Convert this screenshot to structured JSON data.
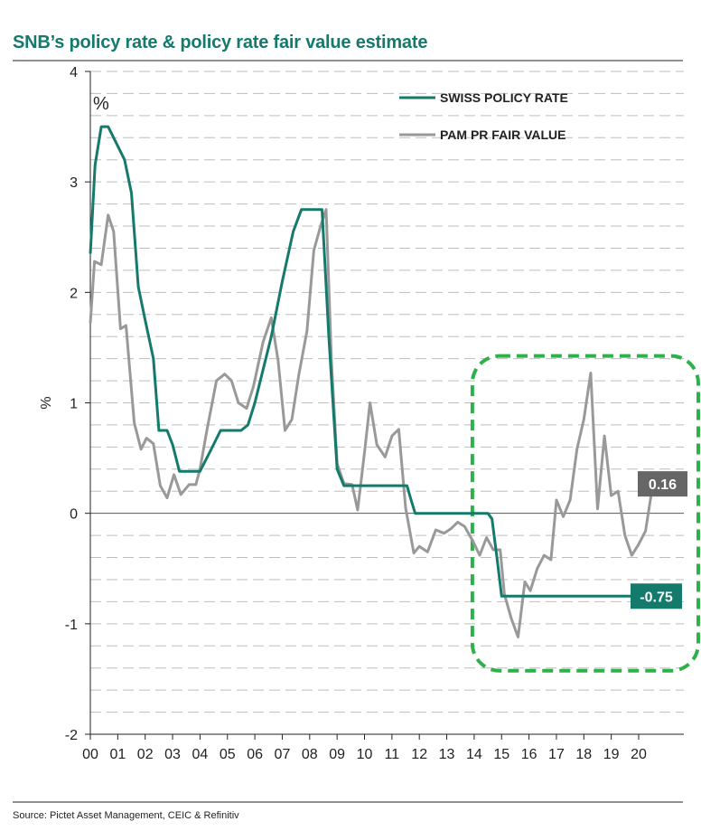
{
  "page": {
    "source": "Source: Pictet Asset Management, CEIC & Refinitiv"
  },
  "chart_data": {
    "type": "line",
    "title": "SNB’s policy rate & policy rate fair value estimate",
    "ylabel": "%",
    "unit_label": "%",
    "xlabel": "",
    "ylim": [
      -2,
      4
    ],
    "yticks": [
      4,
      3,
      2,
      1,
      0,
      -1,
      -2
    ],
    "xlim": [
      2000,
      2021
    ],
    "xticks": [
      {
        "label": "00",
        "value": 2000
      },
      {
        "label": "01",
        "value": 2001
      },
      {
        "label": "02",
        "value": 2002
      },
      {
        "label": "03",
        "value": 2003
      },
      {
        "label": "04",
        "value": 2004
      },
      {
        "label": "05",
        "value": 2005
      },
      {
        "label": "06",
        "value": 2006
      },
      {
        "label": "07",
        "value": 2007
      },
      {
        "label": "08",
        "value": 2008
      },
      {
        "label": "09",
        "value": 2009
      },
      {
        "label": "10",
        "value": 2010
      },
      {
        "label": "11",
        "value": 2011
      },
      {
        "label": "12",
        "value": 2012
      },
      {
        "label": "13",
        "value": 2013
      },
      {
        "label": "14",
        "value": 2014
      },
      {
        "label": "15",
        "value": 2015
      },
      {
        "label": "16",
        "value": 2016
      },
      {
        "label": "17",
        "value": 2017
      },
      {
        "label": "18",
        "value": 2018
      },
      {
        "label": "19",
        "value": 2019
      },
      {
        "label": "20",
        "value": 2020
      }
    ],
    "grid": "horizontal dashed",
    "legend_position": "top-right",
    "series": [
      {
        "name": "SWISS POLICY RATE",
        "color": "#147a6c",
        "points": [
          [
            2000.0,
            2.35
          ],
          [
            2000.17,
            3.15
          ],
          [
            2000.4,
            3.5
          ],
          [
            2000.65,
            3.5
          ],
          [
            2000.85,
            3.4
          ],
          [
            2001.25,
            3.2
          ],
          [
            2001.5,
            2.9
          ],
          [
            2001.75,
            2.05
          ],
          [
            2002.0,
            1.75
          ],
          [
            2002.3,
            1.4
          ],
          [
            2002.5,
            0.75
          ],
          [
            2002.8,
            0.75
          ],
          [
            2003.0,
            0.62
          ],
          [
            2003.25,
            0.38
          ],
          [
            2003.75,
            0.38
          ],
          [
            2004.0,
            0.38
          ],
          [
            2004.35,
            0.55
          ],
          [
            2004.75,
            0.75
          ],
          [
            2005.0,
            0.75
          ],
          [
            2005.25,
            0.75
          ],
          [
            2005.5,
            0.75
          ],
          [
            2005.75,
            0.8
          ],
          [
            2006.0,
            1.0
          ],
          [
            2006.3,
            1.3
          ],
          [
            2006.6,
            1.6
          ],
          [
            2007.0,
            2.1
          ],
          [
            2007.4,
            2.55
          ],
          [
            2007.7,
            2.75
          ],
          [
            2008.0,
            2.75
          ],
          [
            2008.2,
            2.75
          ],
          [
            2008.45,
            2.75
          ],
          [
            2008.7,
            1.6
          ],
          [
            2008.85,
            1.0
          ],
          [
            2009.0,
            0.4
          ],
          [
            2009.25,
            0.25
          ],
          [
            2010.0,
            0.25
          ],
          [
            2011.0,
            0.25
          ],
          [
            2011.3,
            0.25
          ],
          [
            2011.55,
            0.25
          ],
          [
            2011.7,
            0.12
          ],
          [
            2011.85,
            0.0
          ],
          [
            2012.0,
            0.0
          ],
          [
            2013.0,
            0.0
          ],
          [
            2014.0,
            0.0
          ],
          [
            2014.5,
            0.0
          ],
          [
            2014.65,
            -0.05
          ],
          [
            2014.83,
            -0.4
          ],
          [
            2015.0,
            -0.75
          ],
          [
            2016.0,
            -0.75
          ],
          [
            2017.0,
            -0.75
          ],
          [
            2018.0,
            -0.75
          ],
          [
            2019.0,
            -0.75
          ],
          [
            2020.0,
            -0.75
          ],
          [
            2021.0,
            -0.75
          ]
        ]
      },
      {
        "name": "PAM PR FAIR VALUE",
        "color": "#999999",
        "points": [
          [
            2000.0,
            1.72
          ],
          [
            2000.15,
            2.28
          ],
          [
            2000.4,
            2.25
          ],
          [
            2000.65,
            2.7
          ],
          [
            2000.85,
            2.55
          ],
          [
            2001.1,
            1.67
          ],
          [
            2001.3,
            1.7
          ],
          [
            2001.6,
            0.82
          ],
          [
            2001.85,
            0.58
          ],
          [
            2002.05,
            0.68
          ],
          [
            2002.3,
            0.63
          ],
          [
            2002.55,
            0.25
          ],
          [
            2002.8,
            0.14
          ],
          [
            2003.05,
            0.35
          ],
          [
            2003.3,
            0.17
          ],
          [
            2003.6,
            0.26
          ],
          [
            2003.85,
            0.26
          ],
          [
            2004.0,
            0.4
          ],
          [
            2004.25,
            0.75
          ],
          [
            2004.6,
            1.2
          ],
          [
            2004.9,
            1.26
          ],
          [
            2005.15,
            1.2
          ],
          [
            2005.4,
            1.0
          ],
          [
            2005.7,
            0.95
          ],
          [
            2005.95,
            1.15
          ],
          [
            2006.3,
            1.55
          ],
          [
            2006.6,
            1.77
          ],
          [
            2006.85,
            1.38
          ],
          [
            2007.1,
            0.75
          ],
          [
            2007.35,
            0.85
          ],
          [
            2007.6,
            1.25
          ],
          [
            2007.9,
            1.65
          ],
          [
            2008.15,
            2.38
          ],
          [
            2008.4,
            2.6
          ],
          [
            2008.6,
            2.75
          ],
          [
            2008.8,
            1.35
          ],
          [
            2009.0,
            0.45
          ],
          [
            2009.25,
            0.27
          ],
          [
            2009.55,
            0.26
          ],
          [
            2009.75,
            0.03
          ],
          [
            2010.0,
            0.55
          ],
          [
            2010.2,
            1.0
          ],
          [
            2010.45,
            0.62
          ],
          [
            2010.75,
            0.51
          ],
          [
            2011.0,
            0.7
          ],
          [
            2011.25,
            0.76
          ],
          [
            2011.5,
            0.05
          ],
          [
            2011.8,
            -0.36
          ],
          [
            2012.0,
            -0.3
          ],
          [
            2012.3,
            -0.35
          ],
          [
            2012.6,
            -0.15
          ],
          [
            2012.9,
            -0.18
          ],
          [
            2013.15,
            -0.14
          ],
          [
            2013.4,
            -0.08
          ],
          [
            2013.65,
            -0.12
          ],
          [
            2013.95,
            -0.25
          ],
          [
            2014.2,
            -0.38
          ],
          [
            2014.45,
            -0.22
          ],
          [
            2014.7,
            -0.33
          ],
          [
            2014.95,
            -0.33
          ],
          [
            2015.1,
            -0.73
          ],
          [
            2015.35,
            -0.95
          ],
          [
            2015.6,
            -1.12
          ],
          [
            2015.85,
            -0.62
          ],
          [
            2016.05,
            -0.7
          ],
          [
            2016.3,
            -0.5
          ],
          [
            2016.55,
            -0.38
          ],
          [
            2016.8,
            -0.42
          ],
          [
            2017.0,
            0.12
          ],
          [
            2017.25,
            -0.03
          ],
          [
            2017.5,
            0.12
          ],
          [
            2017.75,
            0.58
          ],
          [
            2018.0,
            0.85
          ],
          [
            2018.25,
            1.27
          ],
          [
            2018.5,
            0.04
          ],
          [
            2018.75,
            0.7
          ],
          [
            2019.0,
            0.16
          ],
          [
            2019.25,
            0.2
          ],
          [
            2019.5,
            -0.2
          ],
          [
            2019.75,
            -0.38
          ],
          [
            2020.0,
            -0.28
          ],
          [
            2020.25,
            -0.16
          ],
          [
            2020.45,
            0.16
          ]
        ]
      }
    ],
    "annotations": [
      {
        "text": "0.16",
        "value": 0.16,
        "series": "PAM PR FAIR VALUE",
        "color": "#666666"
      },
      {
        "text": "-0.75",
        "value": -0.75,
        "series": "SWISS POLICY RATE",
        "color": "#147a6c"
      }
    ],
    "highlight": {
      "x_range": [
        2014.0,
        2021.0
      ],
      "y_range": [
        -1.4,
        1.4
      ],
      "color": "#2eb04a",
      "style": "dashed rounded box"
    }
  }
}
